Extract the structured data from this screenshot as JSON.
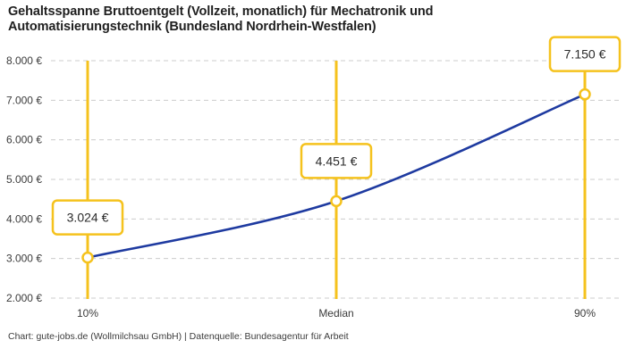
{
  "page": {
    "background": "#ffffff"
  },
  "header": {
    "title_line1": "Gehaltsspanne Bruttoentgelt (Vollzeit, monatlich) für Mechatronik und",
    "title_line2": "Automatisierungstechnik (Bundesland Nordrhein-Westfalen)"
  },
  "footer": {
    "text": "Chart: gute-jobs.de (Wollmilchsau GmbH) | Datenquelle: Bundesagentur für Arbeit"
  },
  "chart_data": {
    "type": "line",
    "title": "Gehaltsspanne Bruttoentgelt (Vollzeit, monatlich) für Mechatronik und Automatisierungstechnik (Bundesland Nordrhein-Westfalen)",
    "categories": [
      "10%",
      "Median",
      "90%"
    ],
    "values": [
      3024,
      4451,
      7150
    ],
    "point_labels": [
      "3.024 €",
      "4.451 €",
      "7.150 €"
    ],
    "y_ticks": [
      {
        "value": 2000,
        "label": "2.000 €"
      },
      {
        "value": 3000,
        "label": "3.000 €"
      },
      {
        "value": 4000,
        "label": "4.000 €"
      },
      {
        "value": 5000,
        "label": "5.000 €"
      },
      {
        "value": 6000,
        "label": "6.000 €"
      },
      {
        "value": 7000,
        "label": "7.000 €"
      },
      {
        "value": 8000,
        "label": "8.000 €"
      }
    ],
    "ylim": [
      2000,
      8000
    ],
    "xlabel": "",
    "ylabel": "",
    "grid": "horizontal-dashed",
    "legend": "none",
    "colors": {
      "line": "#1e3aa0",
      "marker": "#f5c21d",
      "marker_fill": "#ffffff",
      "grid": "#cccccc",
      "axis_text": "#3b3b3b",
      "value_text": "#2b2b2b",
      "box_bg": "#ffffff"
    }
  }
}
